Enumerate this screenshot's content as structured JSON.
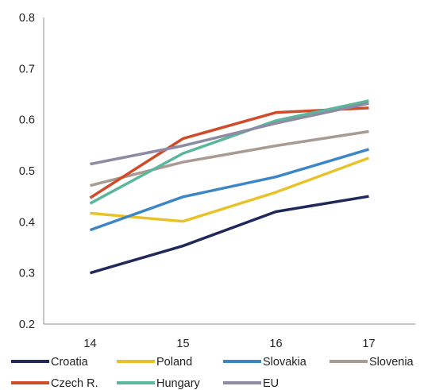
{
  "chart_data": {
    "type": "line",
    "categories": [
      "14",
      "15",
      "16",
      "17"
    ],
    "ylim": [
      0.2,
      0.8
    ],
    "yticks": [
      "0.2",
      "0.3",
      "0.4",
      "0.5",
      "0.6",
      "0.7",
      "0.8"
    ],
    "title": "",
    "xlabel": "",
    "ylabel": "",
    "grid": false,
    "legend_position": "bottom",
    "series": [
      {
        "name": "Croatia",
        "color": "#1f2a5a",
        "values": [
          0.3,
          0.353,
          0.42,
          0.45
        ]
      },
      {
        "name": "Poland",
        "color": "#e8c229",
        "values": [
          0.417,
          0.401,
          0.458,
          0.525
        ]
      },
      {
        "name": "Slovakia",
        "color": "#3d86c6",
        "values": [
          0.384,
          0.449,
          0.488,
          0.542
        ]
      },
      {
        "name": "Slovenia",
        "color": "#a99b92",
        "values": [
          0.471,
          0.517,
          0.549,
          0.577
        ]
      },
      {
        "name": "Czech R.",
        "color": "#cf4b29",
        "values": [
          0.447,
          0.563,
          0.614,
          0.623
        ]
      },
      {
        "name": "Hungary",
        "color": "#5bb69b",
        "values": [
          0.436,
          0.534,
          0.598,
          0.637
        ]
      },
      {
        "name": "EU",
        "color": "#8d8aa4",
        "values": [
          0.513,
          0.549,
          0.593,
          0.632
        ]
      }
    ]
  }
}
